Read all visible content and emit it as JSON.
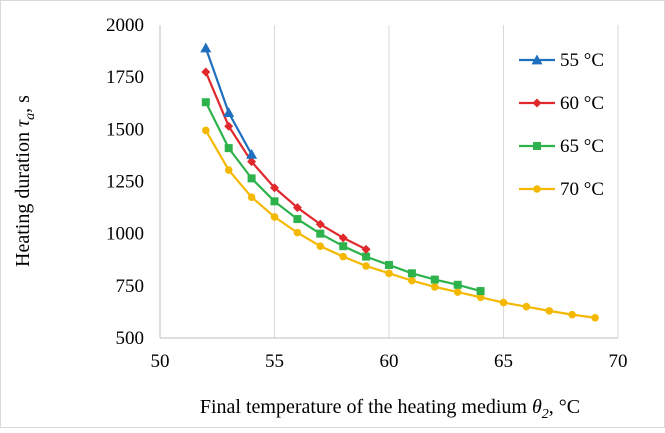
{
  "chart_data": {
    "type": "line",
    "title": "",
    "xlabel": {
      "main": "Final temperature of the heating medium ",
      "symbol": "θ",
      "sub": "2",
      "unit": ", °C"
    },
    "ylabel": {
      "main": "Heating duration ",
      "symbol": "τ",
      "sub": "a",
      "unit": ", s"
    },
    "xlim": [
      50,
      70
    ],
    "ylim": [
      500,
      2000
    ],
    "xticks": [
      50,
      55,
      60,
      65,
      70
    ],
    "yticks": [
      500,
      750,
      1000,
      1250,
      1500,
      1750,
      2000
    ],
    "grid": {
      "vertical": true,
      "horizontal": false
    },
    "legend_position": "top-right",
    "series": [
      {
        "name": "55 °C",
        "color": "#1f6fbf",
        "marker": "triangle",
        "x": [
          52,
          53,
          54
        ],
        "y": [
          1890,
          1580,
          1380
        ]
      },
      {
        "name": "60 °C",
        "color": "#e0282d",
        "marker": "diamond",
        "x": [
          52,
          53,
          54,
          55,
          56,
          57,
          58,
          59
        ],
        "y": [
          1775,
          1515,
          1345,
          1220,
          1125,
          1045,
          980,
          925
        ]
      },
      {
        "name": "65 °C",
        "color": "#2eb24b",
        "marker": "square",
        "x": [
          52,
          53,
          54,
          55,
          56,
          57,
          58,
          59,
          60,
          61,
          62,
          63,
          64
        ],
        "y": [
          1630,
          1410,
          1265,
          1155,
          1070,
          1000,
          940,
          890,
          850,
          810,
          780,
          755,
          725
        ]
      },
      {
        "name": "70 °C",
        "color": "#f5b800",
        "marker": "circle",
        "x": [
          52,
          53,
          54,
          55,
          56,
          57,
          58,
          59,
          60,
          61,
          62,
          63,
          64,
          65,
          66,
          67,
          68,
          69
        ],
        "y": [
          1495,
          1305,
          1175,
          1080,
          1005,
          940,
          890,
          845,
          810,
          775,
          745,
          720,
          695,
          670,
          650,
          630,
          612,
          597
        ]
      }
    ]
  }
}
